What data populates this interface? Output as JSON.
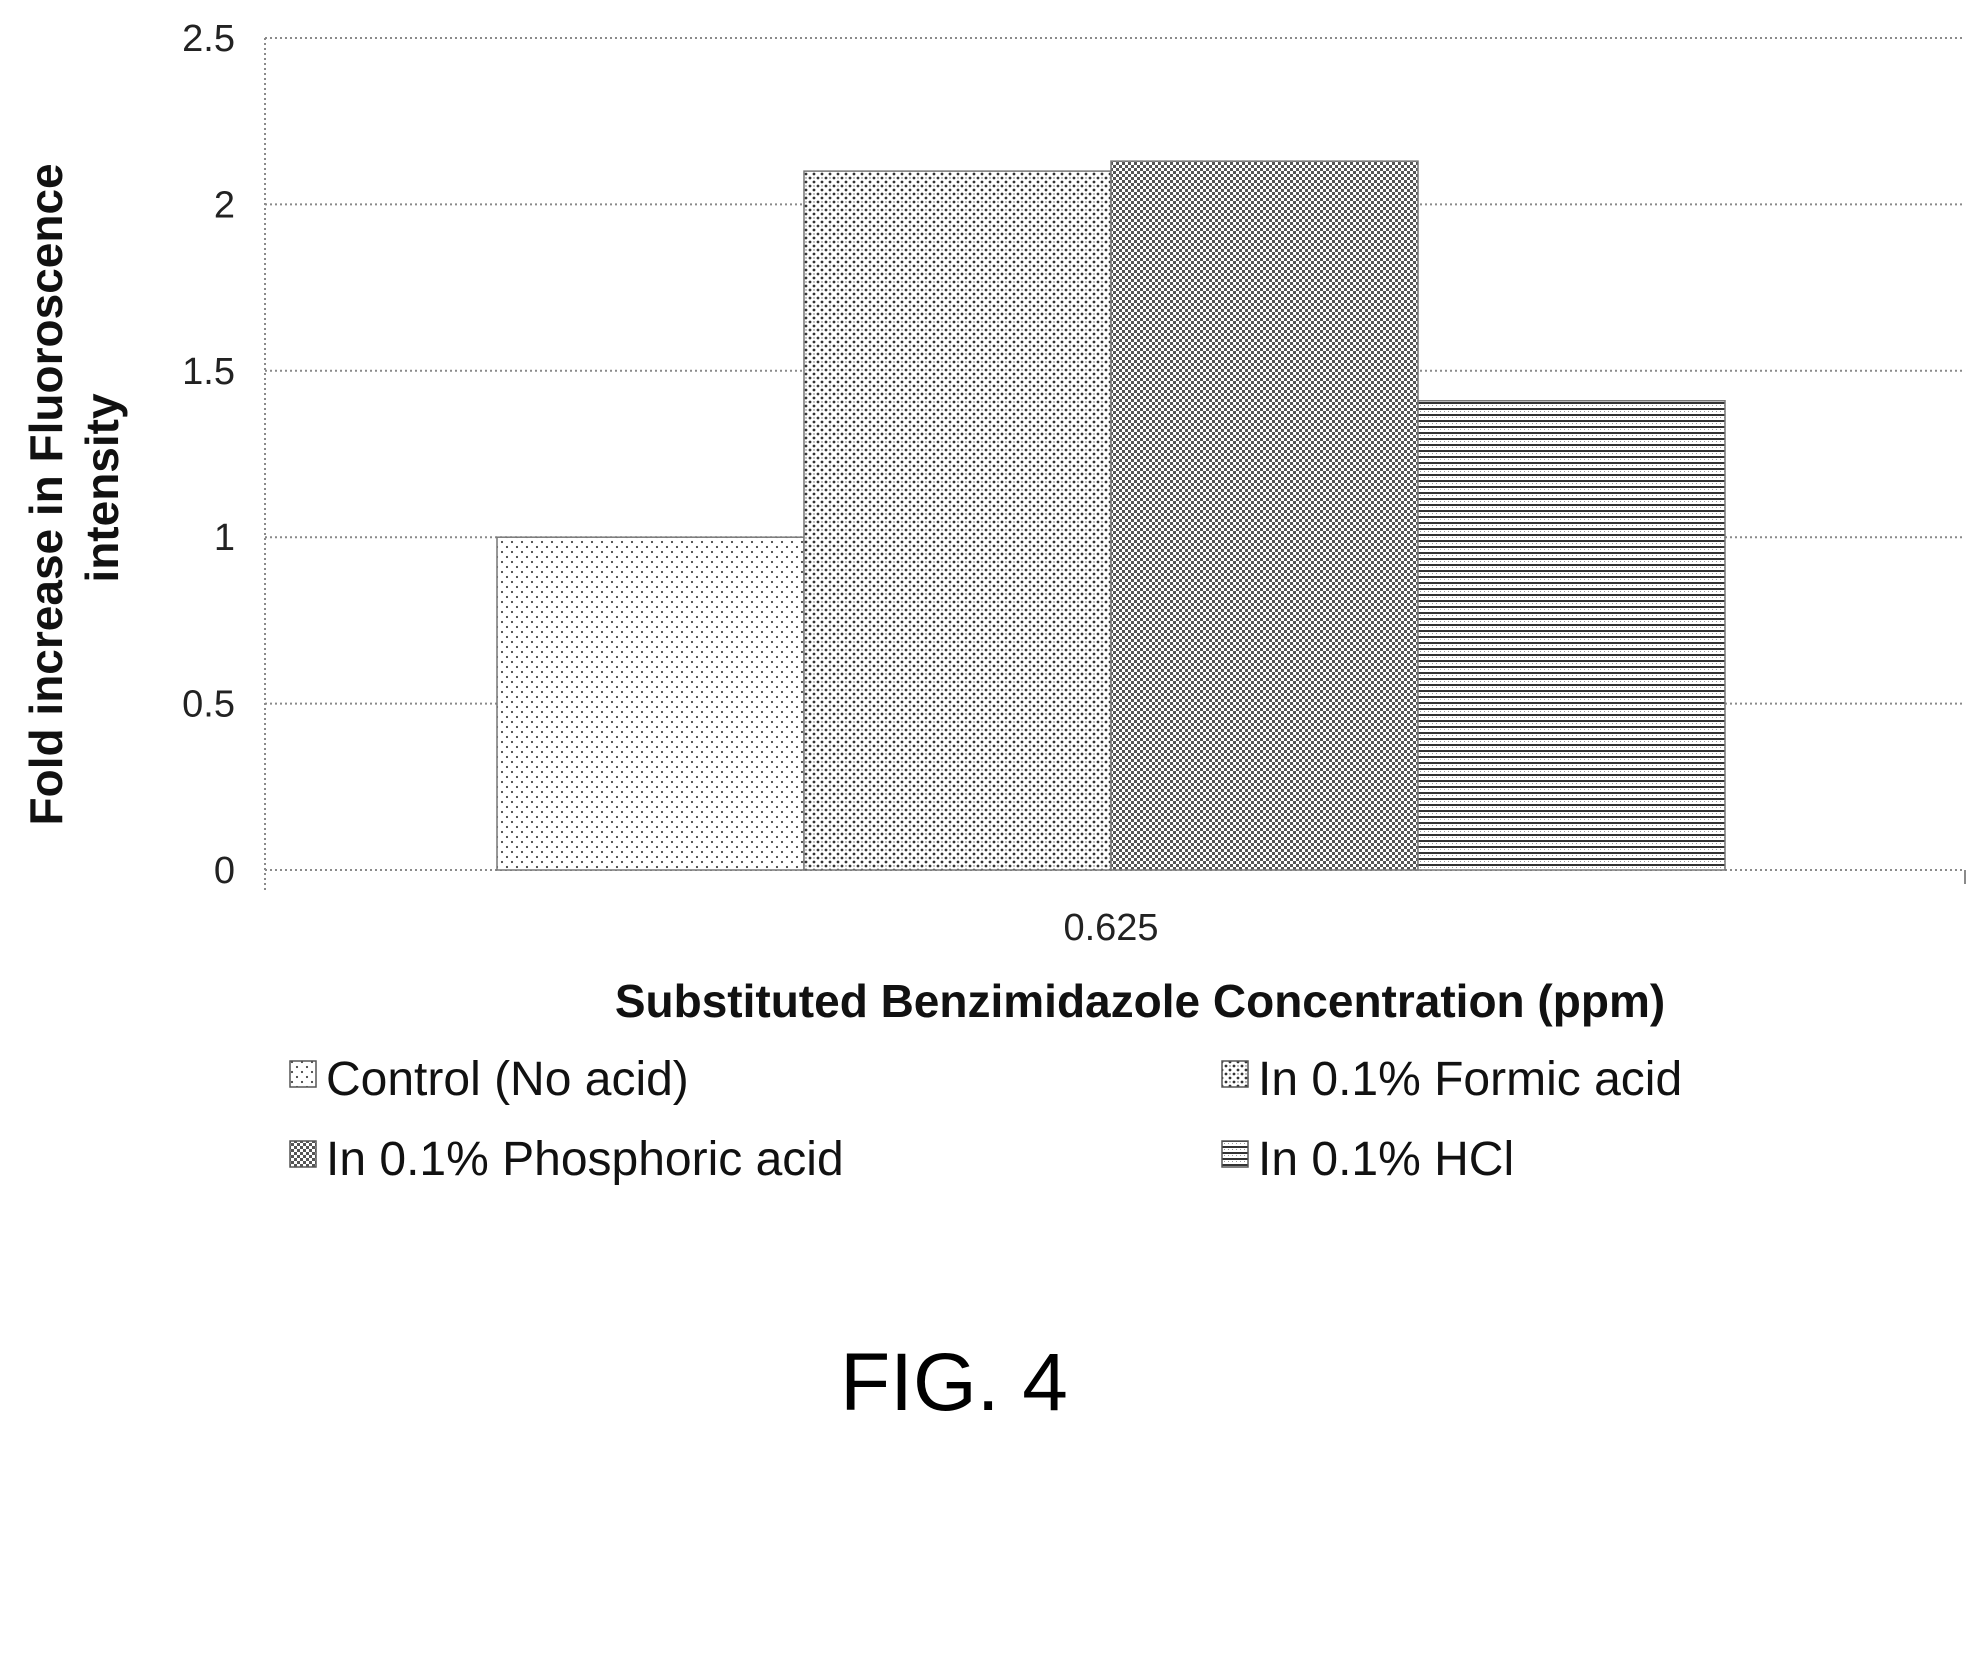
{
  "figure_label": "FIG. 4",
  "chart_data": {
    "type": "bar",
    "categories": [
      "0.625"
    ],
    "series": [
      {
        "name": "Control (No acid)",
        "values": [
          1.0
        ],
        "pattern": "sparse-dots"
      },
      {
        "name": "In 0.1% Formic acid",
        "values": [
          2.1
        ],
        "pattern": "dense-dots"
      },
      {
        "name": "In 0.1% Phosphoric acid",
        "values": [
          2.13
        ],
        "pattern": "checker"
      },
      {
        "name": "In 0.1% HCl",
        "values": [
          1.41
        ],
        "pattern": "horizontal-lines"
      }
    ],
    "xlabel": "Substituted Benzimidazole Concentration (ppm)",
    "ylabel": [
      "Fold increase in Fluoroscence",
      "intensity"
    ],
    "ylim": [
      0,
      2.5
    ],
    "yticks": [
      "0",
      "0.5",
      "1",
      "1.5",
      "2",
      "2.5"
    ],
    "grid": true,
    "legend_position": "bottom"
  }
}
